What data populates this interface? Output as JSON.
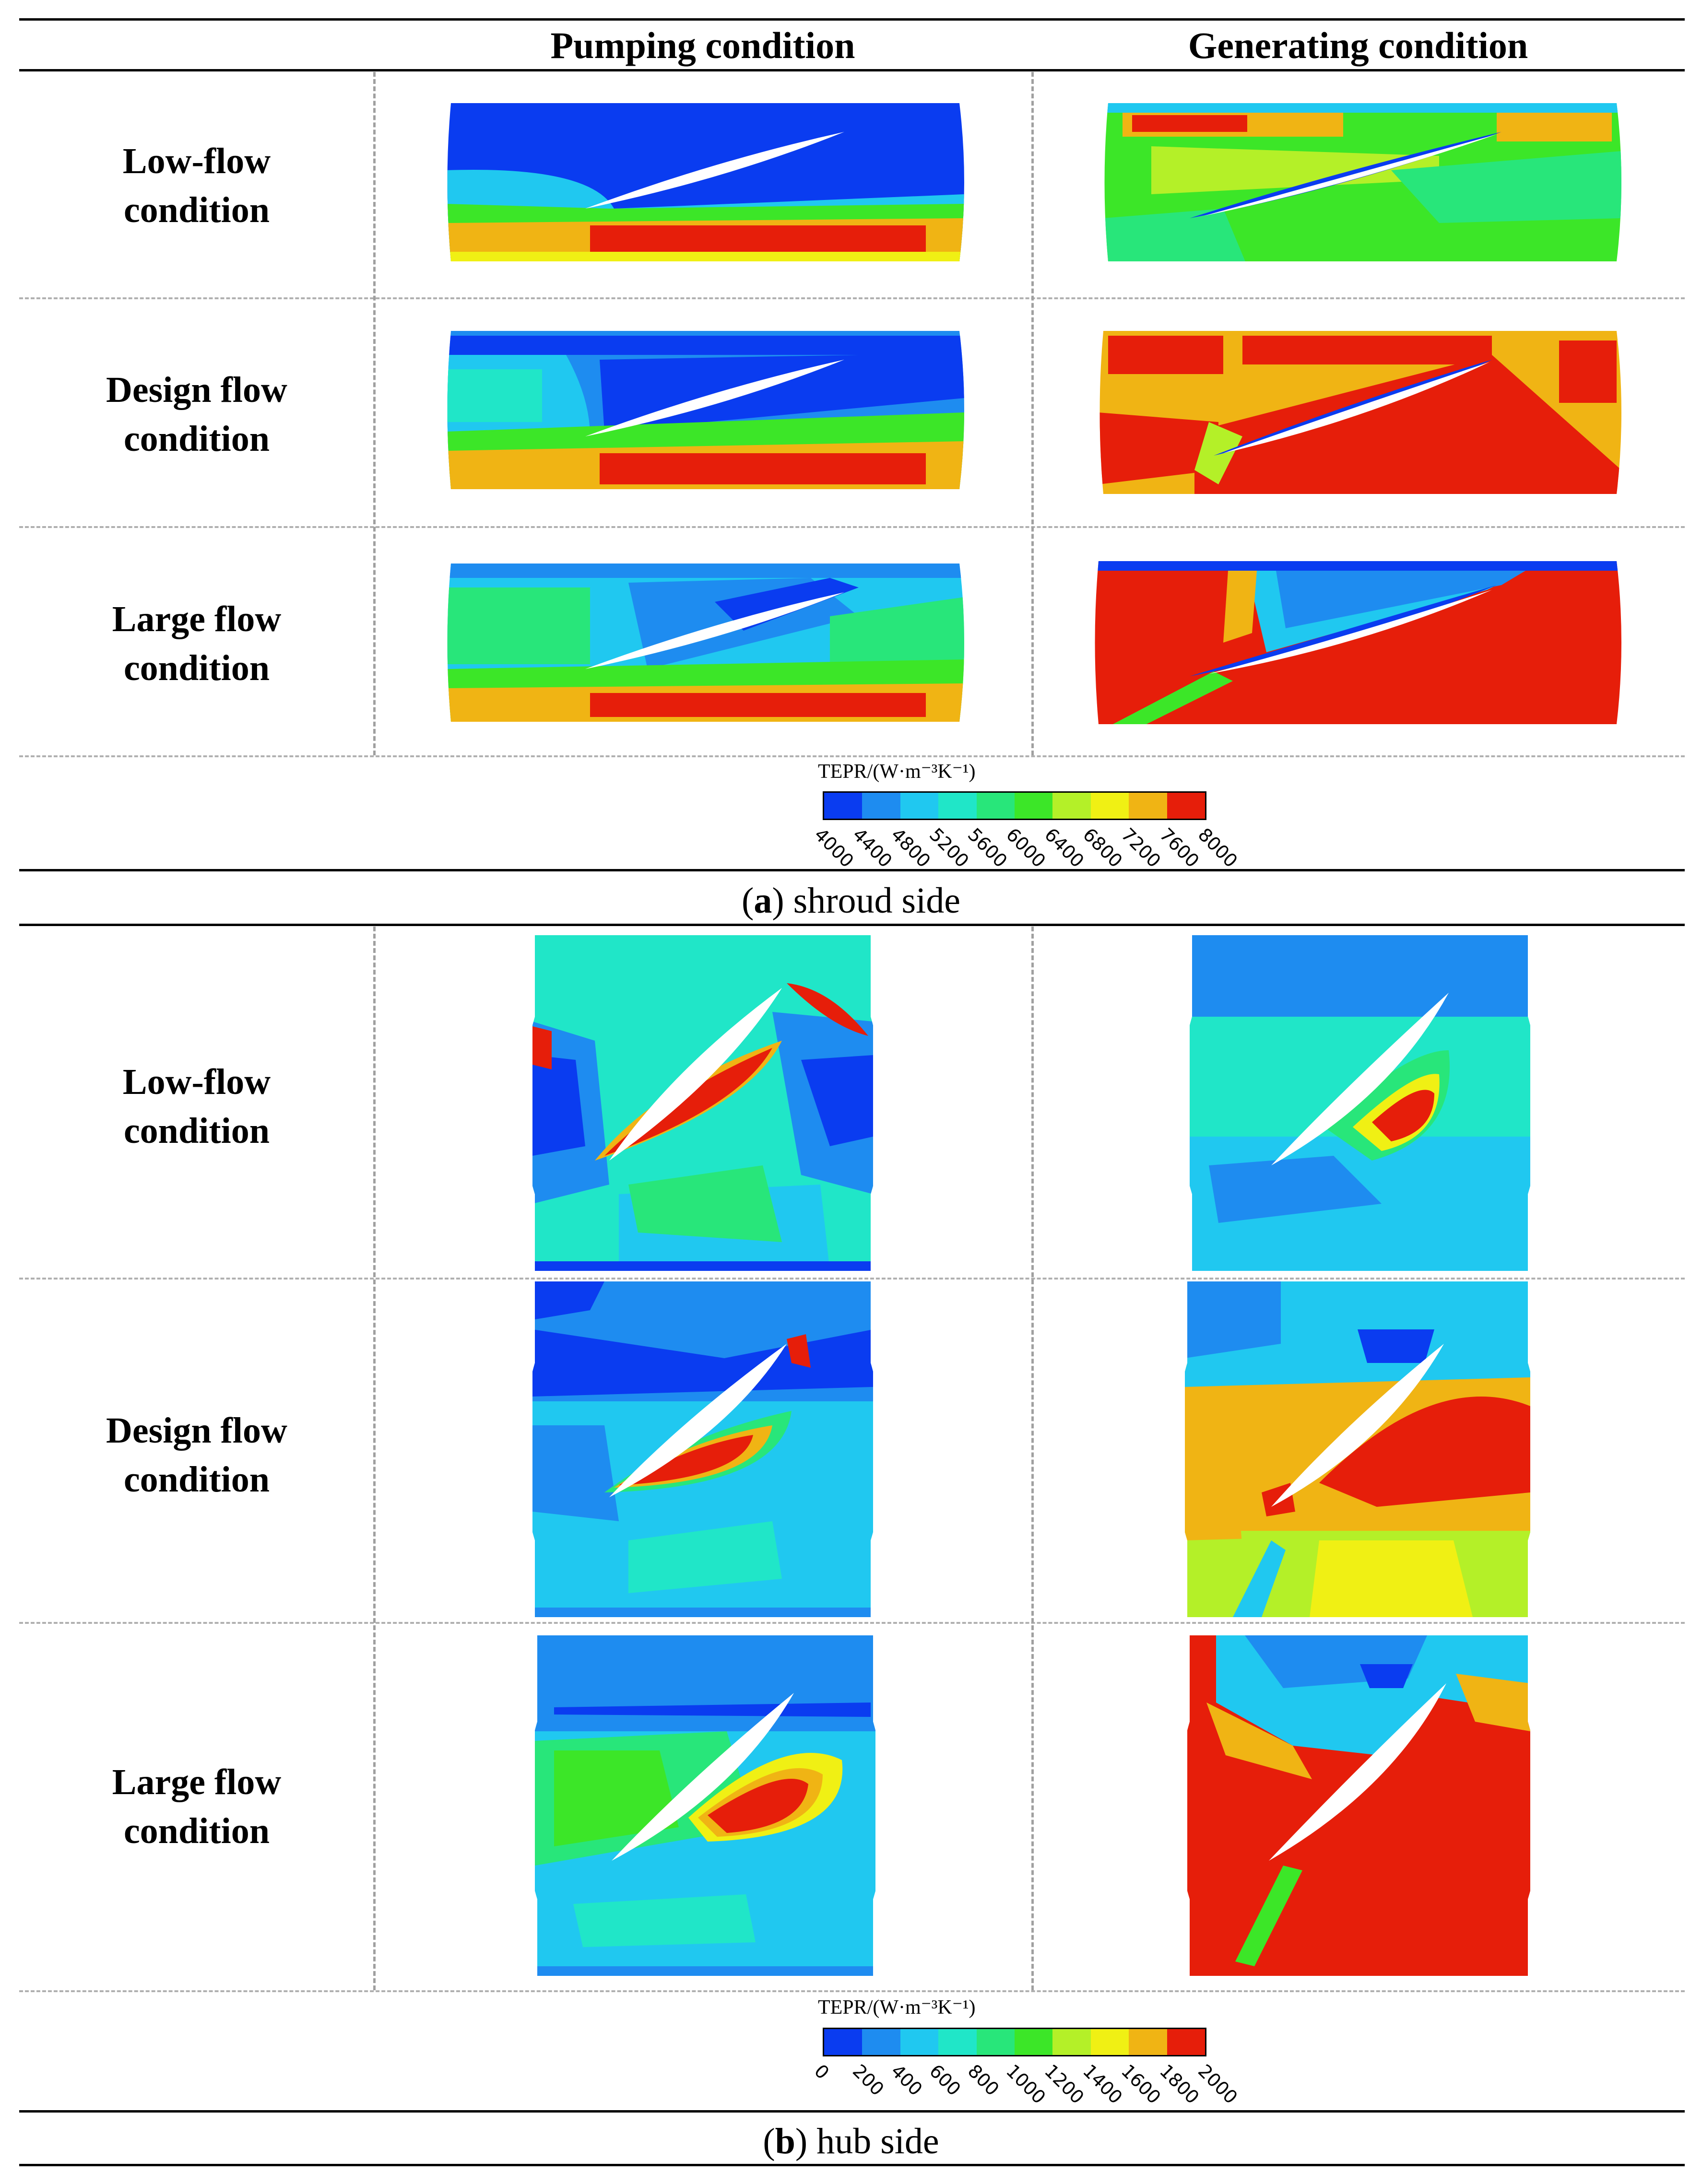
{
  "header": {
    "col_pumping": "Pumping condition",
    "col_generating": "Generating condition"
  },
  "rows": {
    "low": [
      "Low-flow",
      "condition"
    ],
    "design": [
      "Design flow",
      "condition"
    ],
    "large": [
      "Large flow",
      "condition"
    ]
  },
  "shroud": {
    "caption_letter": "a",
    "caption_text": "shroud side",
    "colorbar": {
      "title": "TEPR/(W·m⁻³K⁻¹)",
      "ticks": [
        "4000",
        "4400",
        "4800",
        "5200",
        "5600",
        "6000",
        "6400",
        "6800",
        "7200",
        "7600",
        "8000"
      ]
    }
  },
  "hub": {
    "caption_letter": "b",
    "caption_text": "hub side",
    "colorbar": {
      "title": "TEPR/(W·m⁻³K⁻¹)",
      "ticks": [
        "0",
        "200",
        "400",
        "600",
        "800",
        "1000",
        "1200",
        "1400",
        "1600",
        "1800",
        "2000"
      ]
    }
  },
  "colors": {
    "scale": [
      "#0a3cf0",
      "#1e8cf0",
      "#20c8f0",
      "#20e6c8",
      "#28e67a",
      "#3ce628",
      "#b4f028",
      "#f0f014",
      "#f0b414",
      "#f06414",
      "#e61e0a"
    ],
    "blade": "#ffffff"
  }
}
